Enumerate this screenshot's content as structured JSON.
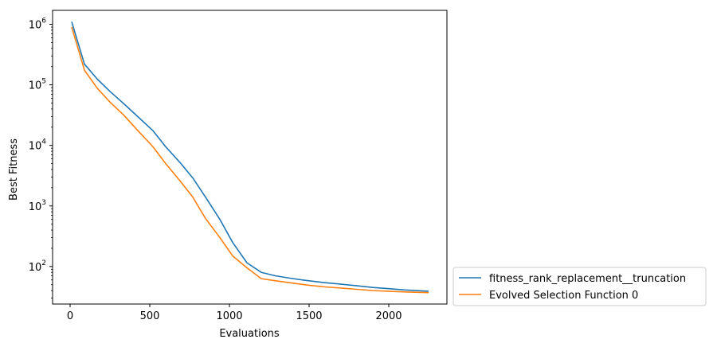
{
  "chart_data": {
    "type": "line",
    "title": "",
    "xlabel": "Evaluations",
    "ylabel": "Best Fitness",
    "xlim": [
      -110,
      2365
    ],
    "ylim": [
      24,
      1700000
    ],
    "yscale": "log",
    "grid": false,
    "legend_position": "outside-lower-right",
    "x_ticks": [
      0,
      500,
      1000,
      1500,
      2000
    ],
    "x_tick_labels": [
      "0",
      "500",
      "1000",
      "1500",
      "2000"
    ],
    "y_ticks": [
      100,
      1000,
      10000,
      100000,
      1000000
    ],
    "y_tick_base": "10",
    "y_tick_exponents": [
      "2",
      "3",
      "4",
      "5",
      "6"
    ],
    "series": [
      {
        "name": "fitness_rank_replacement__truncation",
        "color": "#1f77b4",
        "x": [
          10,
          90,
          170,
          250,
          340,
          430,
          520,
          600,
          690,
          770,
          850,
          940,
          1020,
          1110,
          1200,
          1290,
          1400,
          1500,
          1600,
          1700,
          1800,
          1900,
          2000,
          2100,
          2250
        ],
        "y": [
          1100000,
          220000,
          125000,
          78000,
          48000,
          29000,
          17500,
          9500,
          5200,
          2900,
          1400,
          600,
          250,
          115,
          80,
          70,
          63,
          58,
          54,
          51,
          48,
          45,
          43,
          41,
          39
        ]
      },
      {
        "name": "Evolved Selection Function 0",
        "color": "#ff7f0e",
        "x": [
          10,
          90,
          170,
          250,
          340,
          430,
          520,
          600,
          690,
          770,
          850,
          940,
          1020,
          1110,
          1200,
          1290,
          1400,
          1500,
          1600,
          1700,
          1800,
          1900,
          2000,
          2100,
          2250
        ],
        "y": [
          900000,
          175000,
          88000,
          52000,
          31000,
          17000,
          9500,
          5000,
          2600,
          1400,
          620,
          300,
          150,
          95,
          63,
          58,
          53,
          49,
          46,
          44,
          42,
          40,
          39,
          38,
          37
        ]
      }
    ]
  }
}
